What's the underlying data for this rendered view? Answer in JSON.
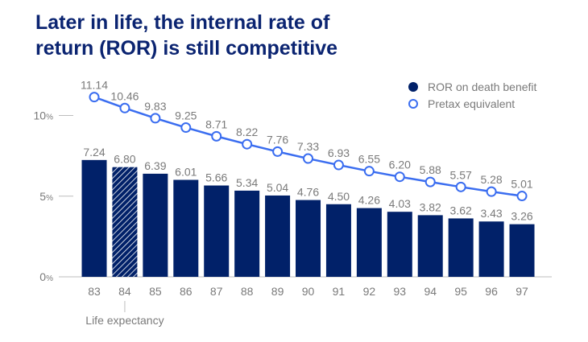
{
  "chart_data": {
    "type": "bar+line",
    "title": [
      "Later in life, the internal rate of",
      "return (ROR) is still competitive"
    ],
    "categories": [
      "83",
      "84",
      "85",
      "86",
      "87",
      "88",
      "89",
      "90",
      "91",
      "92",
      "93",
      "94",
      "95",
      "96",
      "97"
    ],
    "series": [
      {
        "name": "ROR on death benefit",
        "type": "bar",
        "color": "#012169",
        "values": [
          7.24,
          6.8,
          6.39,
          6.01,
          5.66,
          5.34,
          5.04,
          4.76,
          4.5,
          4.26,
          4.03,
          3.82,
          3.62,
          3.43,
          3.26
        ],
        "labels": [
          "7.24",
          "6.80",
          "6.39",
          "6.01",
          "5.66",
          "5.34",
          "5.04",
          "4.76",
          "4.50",
          "4.26",
          "4.03",
          "3.82",
          "3.62",
          "3.43",
          "3.26"
        ],
        "highlighted_category": "84",
        "highlight_pattern": "hatched"
      },
      {
        "name": "Pretax equivalent",
        "type": "line",
        "color": "#3a6df0",
        "values": [
          11.14,
          10.46,
          9.83,
          9.25,
          8.71,
          8.22,
          7.76,
          7.33,
          6.93,
          6.55,
          6.2,
          5.88,
          5.57,
          5.28,
          5.01
        ],
        "labels": [
          "11.14",
          "10.46",
          "9.83",
          "9.25",
          "8.71",
          "8.22",
          "7.76",
          "7.33",
          "6.93",
          "6.55",
          "6.20",
          "5.88",
          "5.57",
          "5.28",
          "5.01"
        ]
      }
    ],
    "y_ticks": [
      {
        "value": 0,
        "label": "0%"
      },
      {
        "value": 5,
        "label": "5%"
      },
      {
        "value": 10,
        "label": "10%"
      }
    ],
    "ylim": [
      0,
      12
    ],
    "annotation": {
      "category": "84",
      "text": "Life expectancy"
    },
    "legend_position": "top-right",
    "grid": false
  }
}
